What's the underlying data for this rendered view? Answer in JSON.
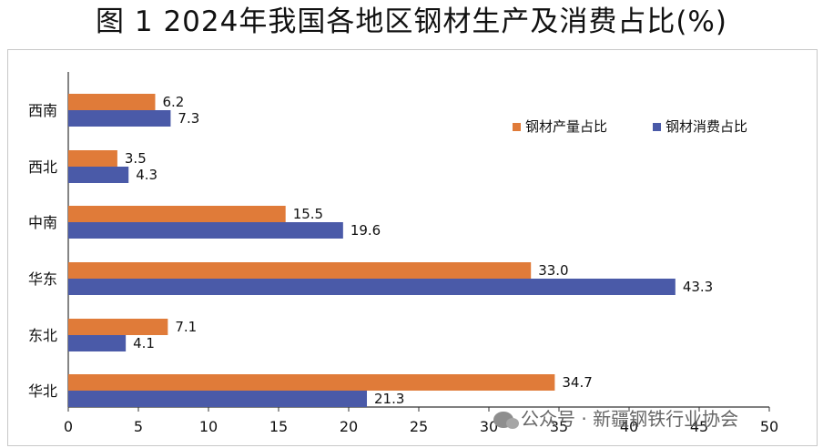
{
  "title": "图 1 2024年我国各地区钢材生产及消费占比(%)",
  "watermark": "公众号 · 新疆钢铁行业协会",
  "chart_data": {
    "type": "bar",
    "orientation": "horizontal",
    "categories": [
      "西南",
      "西北",
      "中南",
      "华东",
      "东北",
      "华北"
    ],
    "series": [
      {
        "name": "钢材产量占比",
        "color": "#e07b39",
        "values": [
          6.2,
          3.5,
          15.5,
          33.0,
          7.1,
          34.7
        ]
      },
      {
        "name": "钢材消费占比",
        "color": "#4a5aa8",
        "values": [
          7.3,
          4.3,
          19.6,
          43.3,
          4.1,
          21.3
        ]
      }
    ],
    "value_labels": [
      [
        "6.2",
        "3.5",
        "15.5",
        "33.0",
        "7.1",
        "34.7"
      ],
      [
        "7.3",
        "4.3",
        "19.6",
        "43.3",
        "4.1",
        "21.3"
      ]
    ],
    "xticks": [
      "0",
      "5",
      "10",
      "15",
      "20",
      "25",
      "30",
      "35",
      "40",
      "45",
      "50"
    ],
    "xlim": [
      0,
      50
    ],
    "grid": false,
    "legend_position": "top-right"
  }
}
